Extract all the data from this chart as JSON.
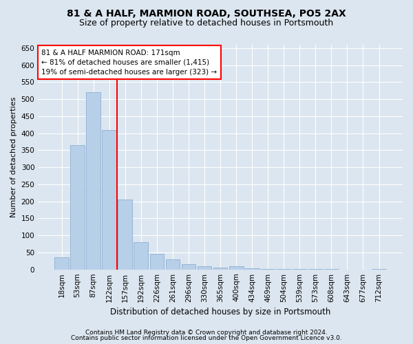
{
  "title": "81 & A HALF, MARMION ROAD, SOUTHSEA, PO5 2AX",
  "subtitle": "Size of property relative to detached houses in Portsmouth",
  "xlabel": "Distribution of detached houses by size in Portsmouth",
  "ylabel": "Number of detached properties",
  "bar_color": "#b8cfe8",
  "bar_edge_color": "#8aafd4",
  "bg_color": "#dce6f0",
  "plot_bg_color": "#dce6f0",
  "fig_bg_color": "#dce6f0",
  "grid_color": "#ffffff",
  "categories": [
    "18sqm",
    "53sqm",
    "87sqm",
    "122sqm",
    "157sqm",
    "192sqm",
    "226sqm",
    "261sqm",
    "296sqm",
    "330sqm",
    "365sqm",
    "400sqm",
    "434sqm",
    "469sqm",
    "504sqm",
    "539sqm",
    "573sqm",
    "608sqm",
    "643sqm",
    "677sqm",
    "712sqm"
  ],
  "values": [
    35,
    365,
    520,
    410,
    205,
    80,
    45,
    30,
    15,
    10,
    5,
    10,
    3,
    2,
    1,
    1,
    1,
    1,
    0,
    0,
    1
  ],
  "red_line_x": 3.5,
  "annotation_title": "81 & A HALF MARMION ROAD: 171sqm",
  "annotation_line1": "← 81% of detached houses are smaller (1,415)",
  "annotation_line2": "19% of semi-detached houses are larger (323) →",
  "ylim": [
    0,
    660
  ],
  "yticks": [
    0,
    50,
    100,
    150,
    200,
    250,
    300,
    350,
    400,
    450,
    500,
    550,
    600,
    650
  ],
  "footer1": "Contains HM Land Registry data © Crown copyright and database right 2024.",
  "footer2": "Contains public sector information licensed under the Open Government Licence v3.0.",
  "title_fontsize": 10,
  "subtitle_fontsize": 9,
  "ylabel_fontsize": 8,
  "xlabel_fontsize": 8.5,
  "tick_fontsize": 7.5,
  "annot_fontsize": 7.5,
  "footer_fontsize": 6.5
}
